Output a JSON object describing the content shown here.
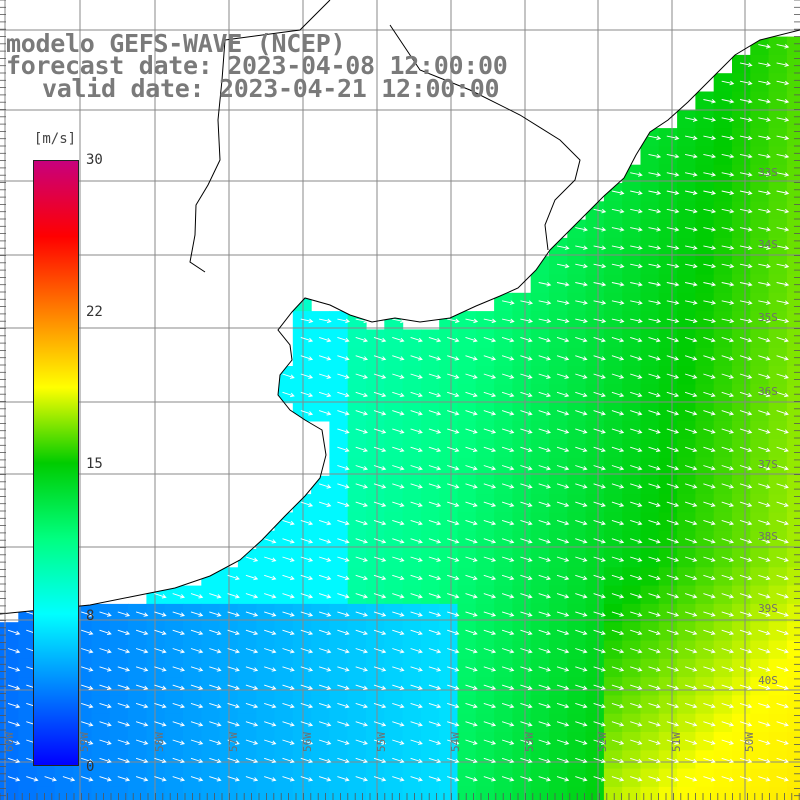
{
  "title": {
    "line1": "modelo GEFS-WAVE (NCEP)",
    "line2": "forecast date: 2023-04-08 12:00:00",
    "line3": "valid date: 2023-04-21 12:00:00"
  },
  "colorbar": {
    "unit": "[m/s]",
    "ticks": [
      {
        "label": "30",
        "value": 30
      },
      {
        "label": "22",
        "value": 22
      },
      {
        "label": "15",
        "value": 15
      },
      {
        "label": "8",
        "value": 8
      },
      {
        "label": "0",
        "value": 0
      }
    ],
    "colors": [
      "#0000ff",
      "#0080ff",
      "#00ffff",
      "#00ff80",
      "#00cc00",
      "#ffff00",
      "#ff8000",
      "#ff0000",
      "#c8007d"
    ]
  },
  "map": {
    "lat_labels": [
      "33S",
      "34S",
      "35S",
      "36S",
      "37S",
      "38S",
      "39S",
      "40S"
    ],
    "lon_labels": [
      "60W",
      "59W",
      "58W",
      "57W",
      "56W",
      "55W",
      "54W",
      "53W",
      "52W",
      "51W",
      "50W"
    ],
    "land_color": "#ffffff",
    "grid_color": "#888888",
    "arrow_color": "#ffffff",
    "coast_color": "#000000"
  }
}
